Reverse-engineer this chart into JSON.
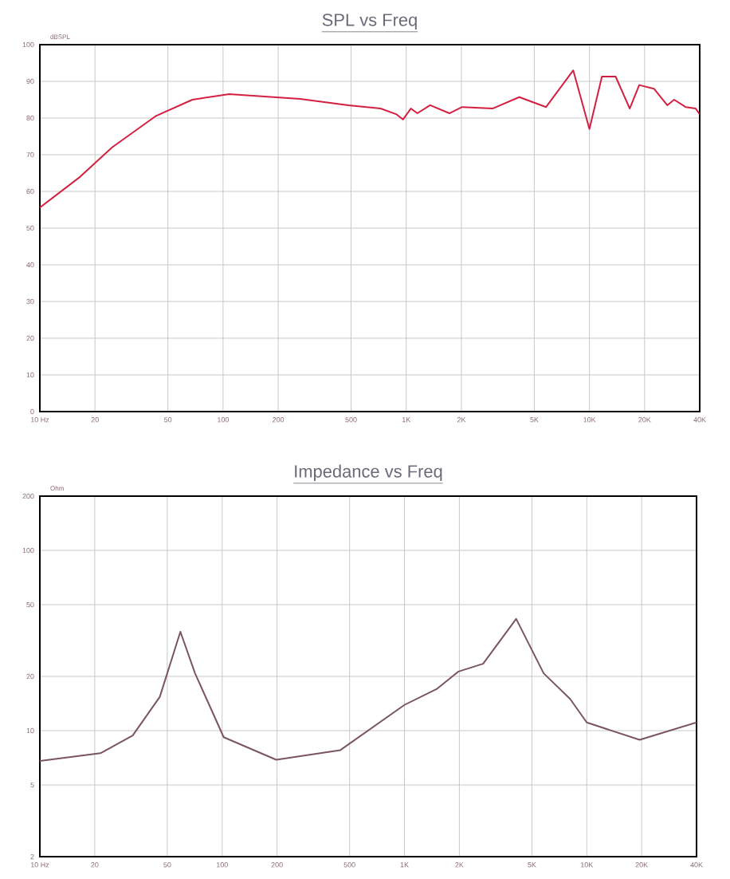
{
  "chart_data": [
    {
      "type": "line",
      "title": "SPL vs Freq",
      "ylabel": "dBSPL",
      "log": "x",
      "grid": true,
      "marker": "none",
      "line_style": "solid",
      "xlim": [
        10,
        40000
      ],
      "ylim": [
        0,
        100
      ],
      "xticks": [
        {
          "value": 10,
          "label": "10 Hz"
        },
        20,
        50,
        100,
        200,
        500,
        {
          "value": 1000,
          "label": "1K"
        },
        {
          "value": 2000,
          "label": "2K"
        },
        {
          "value": 5000,
          "label": "5K"
        },
        {
          "value": 10000,
          "label": "10K"
        },
        {
          "value": 20000,
          "label": "20K"
        },
        {
          "value": 40000,
          "label": "40K"
        }
      ],
      "yticks": [
        0,
        10,
        20,
        30,
        40,
        50,
        60,
        70,
        80,
        90,
        100
      ],
      "series": [
        {
          "color": "#d42040",
          "x": [
            10,
            16.6,
            24.8,
            42.8,
            68,
            108,
            263,
            484,
            724,
            886,
            960,
            1060,
            1150,
            1350,
            1720,
            2020,
            2960,
            4140,
            5800,
            8160,
            10000,
            11700,
            13900,
            16600,
            18700,
            22500,
            26600,
            29000,
            33500,
            38000,
            40000
          ],
          "values": [
            55.6,
            64,
            72,
            80.5,
            85,
            86.5,
            85.2,
            83.5,
            82.6,
            81,
            79.6,
            82.6,
            81.3,
            83.5,
            81.3,
            83,
            82.6,
            85.7,
            83,
            93,
            77,
            91.3,
            91.3,
            82.6,
            89,
            88,
            83.5,
            85,
            83,
            82.6,
            81
          ]
        }
      ]
    },
    {
      "type": "line",
      "title": "Impedance vs Freq",
      "ylabel": "Ohm",
      "log": "xy",
      "grid": true,
      "marker": "none",
      "line_style": "solid",
      "xlim": [
        10,
        40000
      ],
      "ylim": [
        2,
        200
      ],
      "xticks": [
        {
          "value": 10,
          "label": "10 Hz"
        },
        20,
        50,
        100,
        200,
        500,
        {
          "value": 1000,
          "label": "1K"
        },
        {
          "value": 2000,
          "label": "2K"
        },
        {
          "value": 5000,
          "label": "5K"
        },
        {
          "value": 10000,
          "label": "10K"
        },
        {
          "value": 20000,
          "label": "20K"
        },
        {
          "value": 40000,
          "label": "40K"
        }
      ],
      "yticks": [
        2,
        5,
        10,
        20,
        50,
        100,
        200
      ],
      "series": [
        {
          "color": "#7a5560",
          "x": [
            10,
            21.5,
            32.3,
            45.5,
            59,
            71,
            102,
            198,
            445,
            1000,
            1500,
            1980,
            2700,
            4100,
            5800,
            8100,
            10000,
            19500,
            40000
          ],
          "values": [
            6.8,
            7.5,
            9.4,
            15.4,
            35.4,
            20.8,
            9.2,
            6.9,
            7.8,
            13.9,
            17,
            21.3,
            23.5,
            41.7,
            20.8,
            15,
            11.1,
            8.9,
            11.1
          ]
        }
      ]
    }
  ]
}
